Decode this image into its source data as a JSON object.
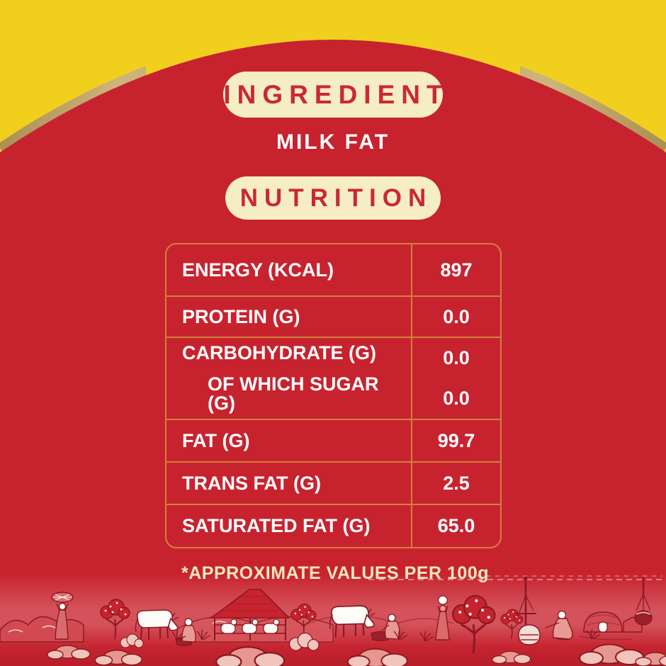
{
  "label": {
    "ingredient_heading": "INGREDIENT",
    "ingredient_value": "MILK FAT",
    "nutrition_heading": "NUTRITION"
  },
  "nutrition_table": {
    "rows": [
      {
        "lines": [
          {
            "label": "ENERGY (KCAL)",
            "value": "897"
          }
        ]
      },
      {
        "lines": [
          {
            "label": "PROTEIN (G)",
            "value": "0.0"
          }
        ]
      },
      {
        "lines": [
          {
            "label": "CARBOHYDRATE (G)",
            "value": "0.0"
          },
          {
            "label": "OF WHICH SUGAR (G)",
            "value": "0.0",
            "indent": true
          }
        ]
      },
      {
        "lines": [
          {
            "label": "FAT (G)",
            "value": "99.7"
          }
        ]
      },
      {
        "lines": [
          {
            "label": "TRANS FAT (G)",
            "value": "2.5"
          }
        ]
      },
      {
        "lines": [
          {
            "label": "SATURATED FAT (G)",
            "value": "65.0"
          }
        ]
      }
    ],
    "footnote": "*APPROXIMATE VALUES PER 100g"
  },
  "illustration": {
    "description": "rural dairy village scene line-art",
    "elements": [
      "hills",
      "woman-carrying-bundle",
      "blossom-tree",
      "white-cow",
      "feeding-trough",
      "herder",
      "cattle-shed",
      "calves",
      "milkmaid",
      "woman-with-pot",
      "butter-churn",
      "seated-churning-woman",
      "village-huts",
      "hanging-pot",
      "rocks",
      "grass-tufts"
    ]
  },
  "colors": {
    "background_yellow": "#F0D01D",
    "panel_red": "#C7232F",
    "badge_cream": "#F5EDC4",
    "badge_text_red": "#CA2835",
    "gold_arc": "#BCA268",
    "table_border_orange": "#D2803B",
    "table_text_white": "#FFFFFF",
    "footnote_cream": "#F2E8BE"
  }
}
